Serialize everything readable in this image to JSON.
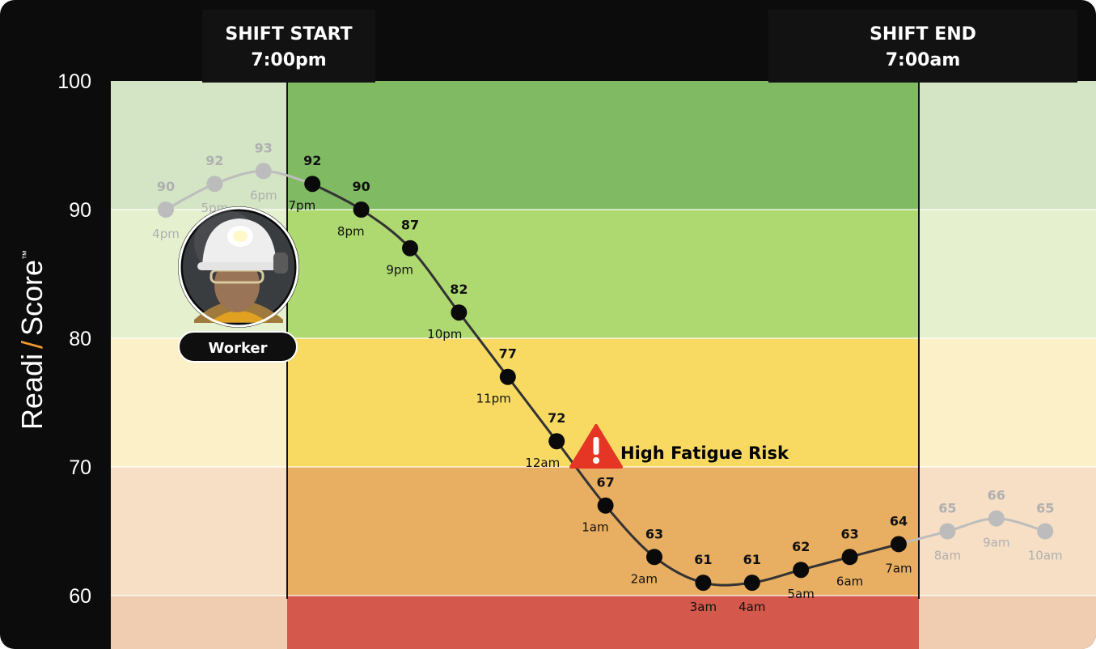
{
  "chart_data": {
    "type": "line",
    "y_axis_title": {
      "part1": "Readi",
      "separator": "/",
      "part2": "Score",
      "trademark": "™"
    },
    "y_ticks": [
      "100",
      "90",
      "80",
      "70",
      "60"
    ],
    "ylim": [
      60,
      100
    ],
    "shift_start": {
      "label": "SHIFT START",
      "time": "7:00pm"
    },
    "shift_end": {
      "label": "SHIFT END",
      "time": "7:00am"
    },
    "zones": [
      {
        "from": 90,
        "to": 100,
        "color": "#80bb63",
        "faded_color": "#d3e5c4"
      },
      {
        "from": 80,
        "to": 90,
        "color": "#aed970",
        "faded_color": "#e5f1ce"
      },
      {
        "from": 70,
        "to": 80,
        "color": "#f8da63",
        "faded_color": "#fcf0c8"
      },
      {
        "from": 60,
        "to": 70,
        "color": "#e8ae61",
        "faded_color": "#f6dfc5"
      },
      {
        "from": 56,
        "to": 60,
        "color": "#d4584b",
        "faded_color": "#f0ccb0"
      }
    ],
    "series": [
      {
        "points": [
          {
            "x": "4pm",
            "y": 90,
            "in_shift": false
          },
          {
            "x": "5pm",
            "y": 92,
            "in_shift": false
          },
          {
            "x": "6pm",
            "y": 93,
            "in_shift": false
          },
          {
            "x": "7pm",
            "y": 92,
            "in_shift": true
          },
          {
            "x": "8pm",
            "y": 90,
            "in_shift": true
          },
          {
            "x": "9pm",
            "y": 87,
            "in_shift": true
          },
          {
            "x": "10pm",
            "y": 82,
            "in_shift": true
          },
          {
            "x": "11pm",
            "y": 77,
            "in_shift": true
          },
          {
            "x": "12am",
            "y": 72,
            "in_shift": true
          },
          {
            "x": "1am",
            "y": 67,
            "in_shift": true
          },
          {
            "x": "2am",
            "y": 63,
            "in_shift": true
          },
          {
            "x": "3am",
            "y": 61,
            "in_shift": true
          },
          {
            "x": "4am",
            "y": 61,
            "in_shift": true
          },
          {
            "x": "5am",
            "y": 62,
            "in_shift": true
          },
          {
            "x": "6am",
            "y": 63,
            "in_shift": true
          },
          {
            "x": "7am",
            "y": 64,
            "in_shift": true
          },
          {
            "x": "8am",
            "y": 65,
            "in_shift": false
          },
          {
            "x": "9am",
            "y": 66,
            "in_shift": false
          },
          {
            "x": "10am",
            "y": 65,
            "in_shift": false
          }
        ]
      }
    ],
    "annotation": {
      "text": "High Fatigue Risk",
      "icon": "warning-triangle-icon",
      "color": "#e53525"
    },
    "worker": {
      "label": "Worker",
      "icon": "worker-avatar-icon"
    }
  }
}
